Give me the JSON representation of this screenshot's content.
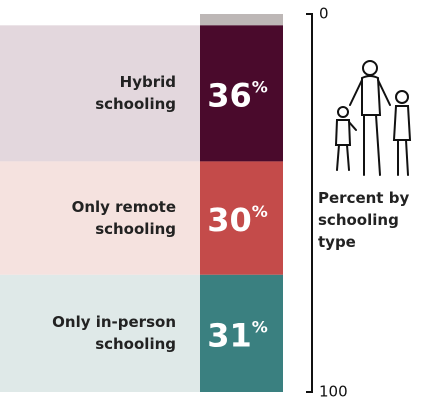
{
  "chart_data": {
    "type": "stacked-column",
    "categories": [
      null,
      "Hybrid schooling",
      "Only remote schooling",
      "Only in-person schooling"
    ],
    "values": [
      3,
      36,
      30,
      31
    ],
    "value_unit": "%",
    "colors": [
      "#bdb7b6",
      "#4a0a2c",
      "#c44b4a",
      "#3a8080"
    ],
    "band_colors": [
      null,
      "#e3d7dd",
      "#f5e2df",
      "#dfe9e8"
    ],
    "axis_label": "Percent by schooling type",
    "ylim": [
      0,
      100
    ],
    "yticks": [
      0,
      100
    ]
  }
}
